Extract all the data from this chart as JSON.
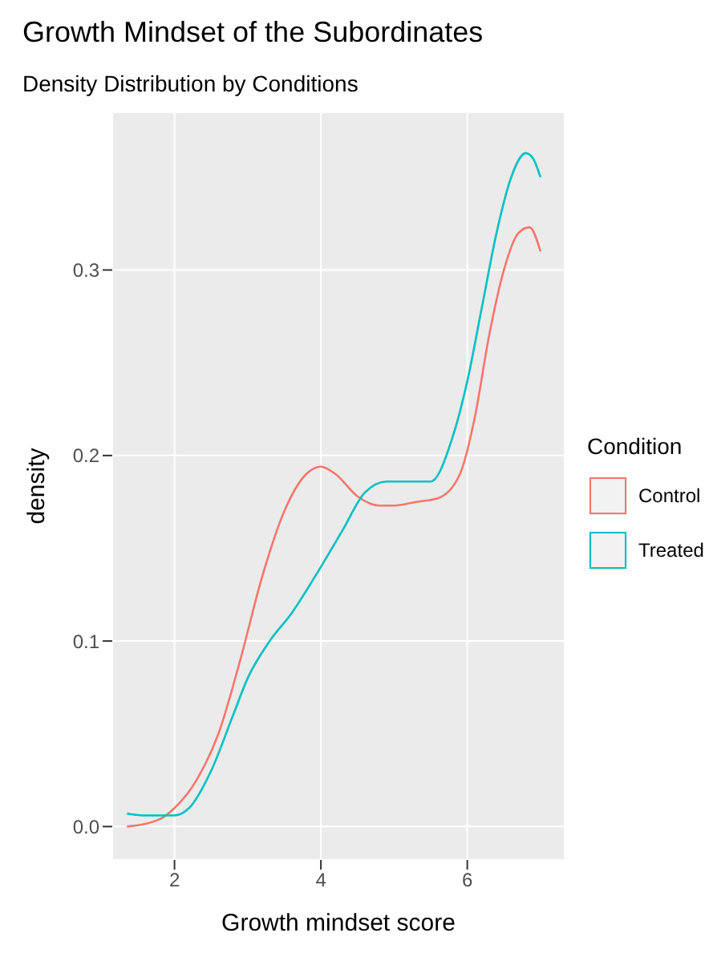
{
  "chart_data": {
    "type": "line",
    "title": "Growth Mindset of the Subordinates",
    "subtitle": "Density Distribution by Conditions",
    "xlabel": "Growth mindset score",
    "ylabel": "density",
    "legend_title": "Condition",
    "legend": "right",
    "grid": true,
    "marker": "none",
    "line_style": "solid",
    "xlim": [
      1.15,
      7.33
    ],
    "xticks": [
      2,
      4,
      6
    ],
    "ylim": [
      -0.018,
      0.385
    ],
    "yticks": [
      {
        "value": 0,
        "label": "0.0"
      },
      0.1,
      0.2,
      0.3
    ],
    "series": [
      {
        "name": "Control",
        "color": "#f8766d",
        "x": [
          1.35,
          1.8,
          2.0,
          2.3,
          2.6,
          2.9,
          3.2,
          3.5,
          3.8,
          4.0,
          4.2,
          4.5,
          4.8,
          5.0,
          5.3,
          5.6,
          5.9,
          6.1,
          6.3,
          6.5,
          6.7,
          6.85,
          7.0
        ],
        "values": [
          0.0,
          0.004,
          0.01,
          0.025,
          0.05,
          0.09,
          0.135,
          0.17,
          0.19,
          0.194,
          0.19,
          0.178,
          0.173,
          0.173,
          0.175,
          0.177,
          0.19,
          0.22,
          0.265,
          0.3,
          0.32,
          0.323,
          0.31
        ]
      },
      {
        "name": "Treated",
        "color": "#00bfc4",
        "x": [
          1.35,
          1.6,
          2.0,
          2.2,
          2.5,
          2.8,
          3.0,
          3.3,
          3.6,
          4.0,
          4.3,
          4.6,
          4.9,
          5.2,
          5.5,
          5.8,
          6.0,
          6.2,
          6.4,
          6.6,
          6.8,
          6.9,
          7.0
        ],
        "values": [
          0.007,
          0.006,
          0.006,
          0.01,
          0.03,
          0.06,
          0.08,
          0.1,
          0.115,
          0.14,
          0.16,
          0.18,
          0.186,
          0.186,
          0.186,
          0.21,
          0.24,
          0.28,
          0.32,
          0.35,
          0.363,
          0.36,
          0.35
        ]
      }
    ]
  }
}
